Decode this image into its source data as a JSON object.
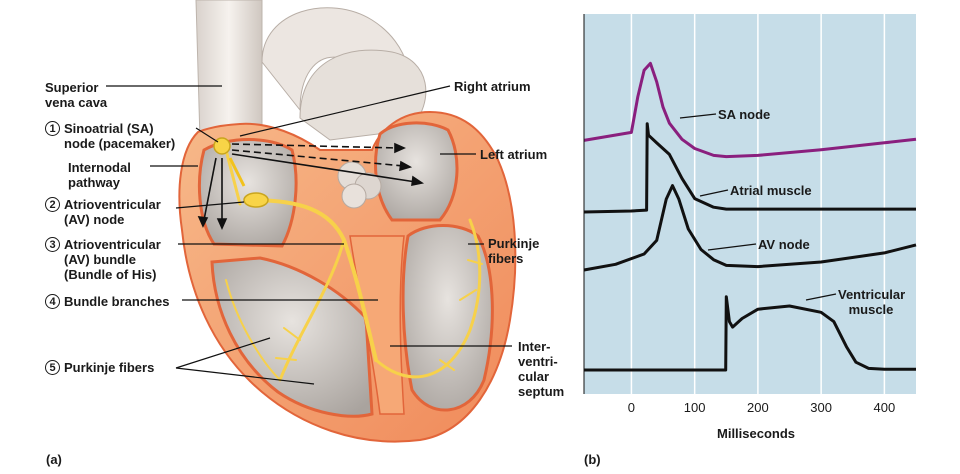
{
  "panel_a": {
    "id": "(a)",
    "labels": {
      "superior_vena_cava": "Superior\nvena cava",
      "sa_node_num": "1",
      "sa_node": "Sinoatrial (SA)\nnode (pacemaker)",
      "internodal": "Internodal\npathway",
      "av_node_num": "2",
      "av_node": "Atrioventricular\n(AV) node",
      "av_bundle_num": "3",
      "av_bundle": "Atrioventricular\n(AV) bundle\n(Bundle of His)",
      "bundle_branches_num": "4",
      "bundle_branches": "Bundle branches",
      "purkinje_left_num": "5",
      "purkinje_left": "Purkinje fibers",
      "right_atrium": "Right atrium",
      "left_atrium": "Left atrium",
      "purkinje_right": "Purkinje\nfibers",
      "septum": "Inter-\nventri-\ncular\nseptum"
    }
  },
  "panel_b": {
    "id": "(b)",
    "xlabel": "Milliseconds",
    "colors": {
      "background": "#c6dde8",
      "sa_trace": "#8a1f7e",
      "other_trace": "#111111"
    }
  },
  "chart_data": {
    "type": "line",
    "xlabel": "Milliseconds",
    "ylabel": "",
    "xlim": [
      -75,
      450
    ],
    "xticks": [
      0,
      100,
      200,
      300,
      400
    ],
    "grid": true,
    "series": [
      {
        "name": "SA node",
        "x": [
          -75,
          0,
          10,
          20,
          30,
          40,
          50,
          60,
          80,
          100,
          130,
          150,
          200,
          300,
          400,
          450
        ],
        "y": [
          0.17,
          0.24,
          0.55,
          0.78,
          0.84,
          0.68,
          0.46,
          0.32,
          0.18,
          0.1,
          0.04,
          0.03,
          0.04,
          0.09,
          0.15,
          0.18
        ]
      },
      {
        "name": "Atrial muscle",
        "x": [
          -75,
          0,
          24,
          25,
          27,
          40,
          60,
          80,
          100,
          130,
          150,
          200,
          300,
          400,
          450
        ],
        "y": [
          0.0,
          0.01,
          0.02,
          0.92,
          0.8,
          0.72,
          0.6,
          0.35,
          0.14,
          0.05,
          0.03,
          0.03,
          0.03,
          0.03,
          0.03
        ]
      },
      {
        "name": "AV node",
        "x": [
          -75,
          -25,
          20,
          40,
          55,
          65,
          75,
          90,
          110,
          130,
          150,
          200,
          300,
          400,
          450
        ],
        "y": [
          0.0,
          0.05,
          0.14,
          0.26,
          0.62,
          0.74,
          0.62,
          0.36,
          0.18,
          0.09,
          0.04,
          0.03,
          0.07,
          0.15,
          0.22
        ]
      },
      {
        "name": "Ventricular muscle",
        "x": [
          -75,
          149,
          150,
          155,
          160,
          175,
          200,
          250,
          300,
          320,
          340,
          355,
          375,
          400,
          450
        ],
        "y": [
          0.0,
          0.0,
          0.94,
          0.62,
          0.55,
          0.66,
          0.78,
          0.82,
          0.74,
          0.62,
          0.3,
          0.1,
          0.02,
          0.01,
          0.01
        ]
      }
    ]
  }
}
